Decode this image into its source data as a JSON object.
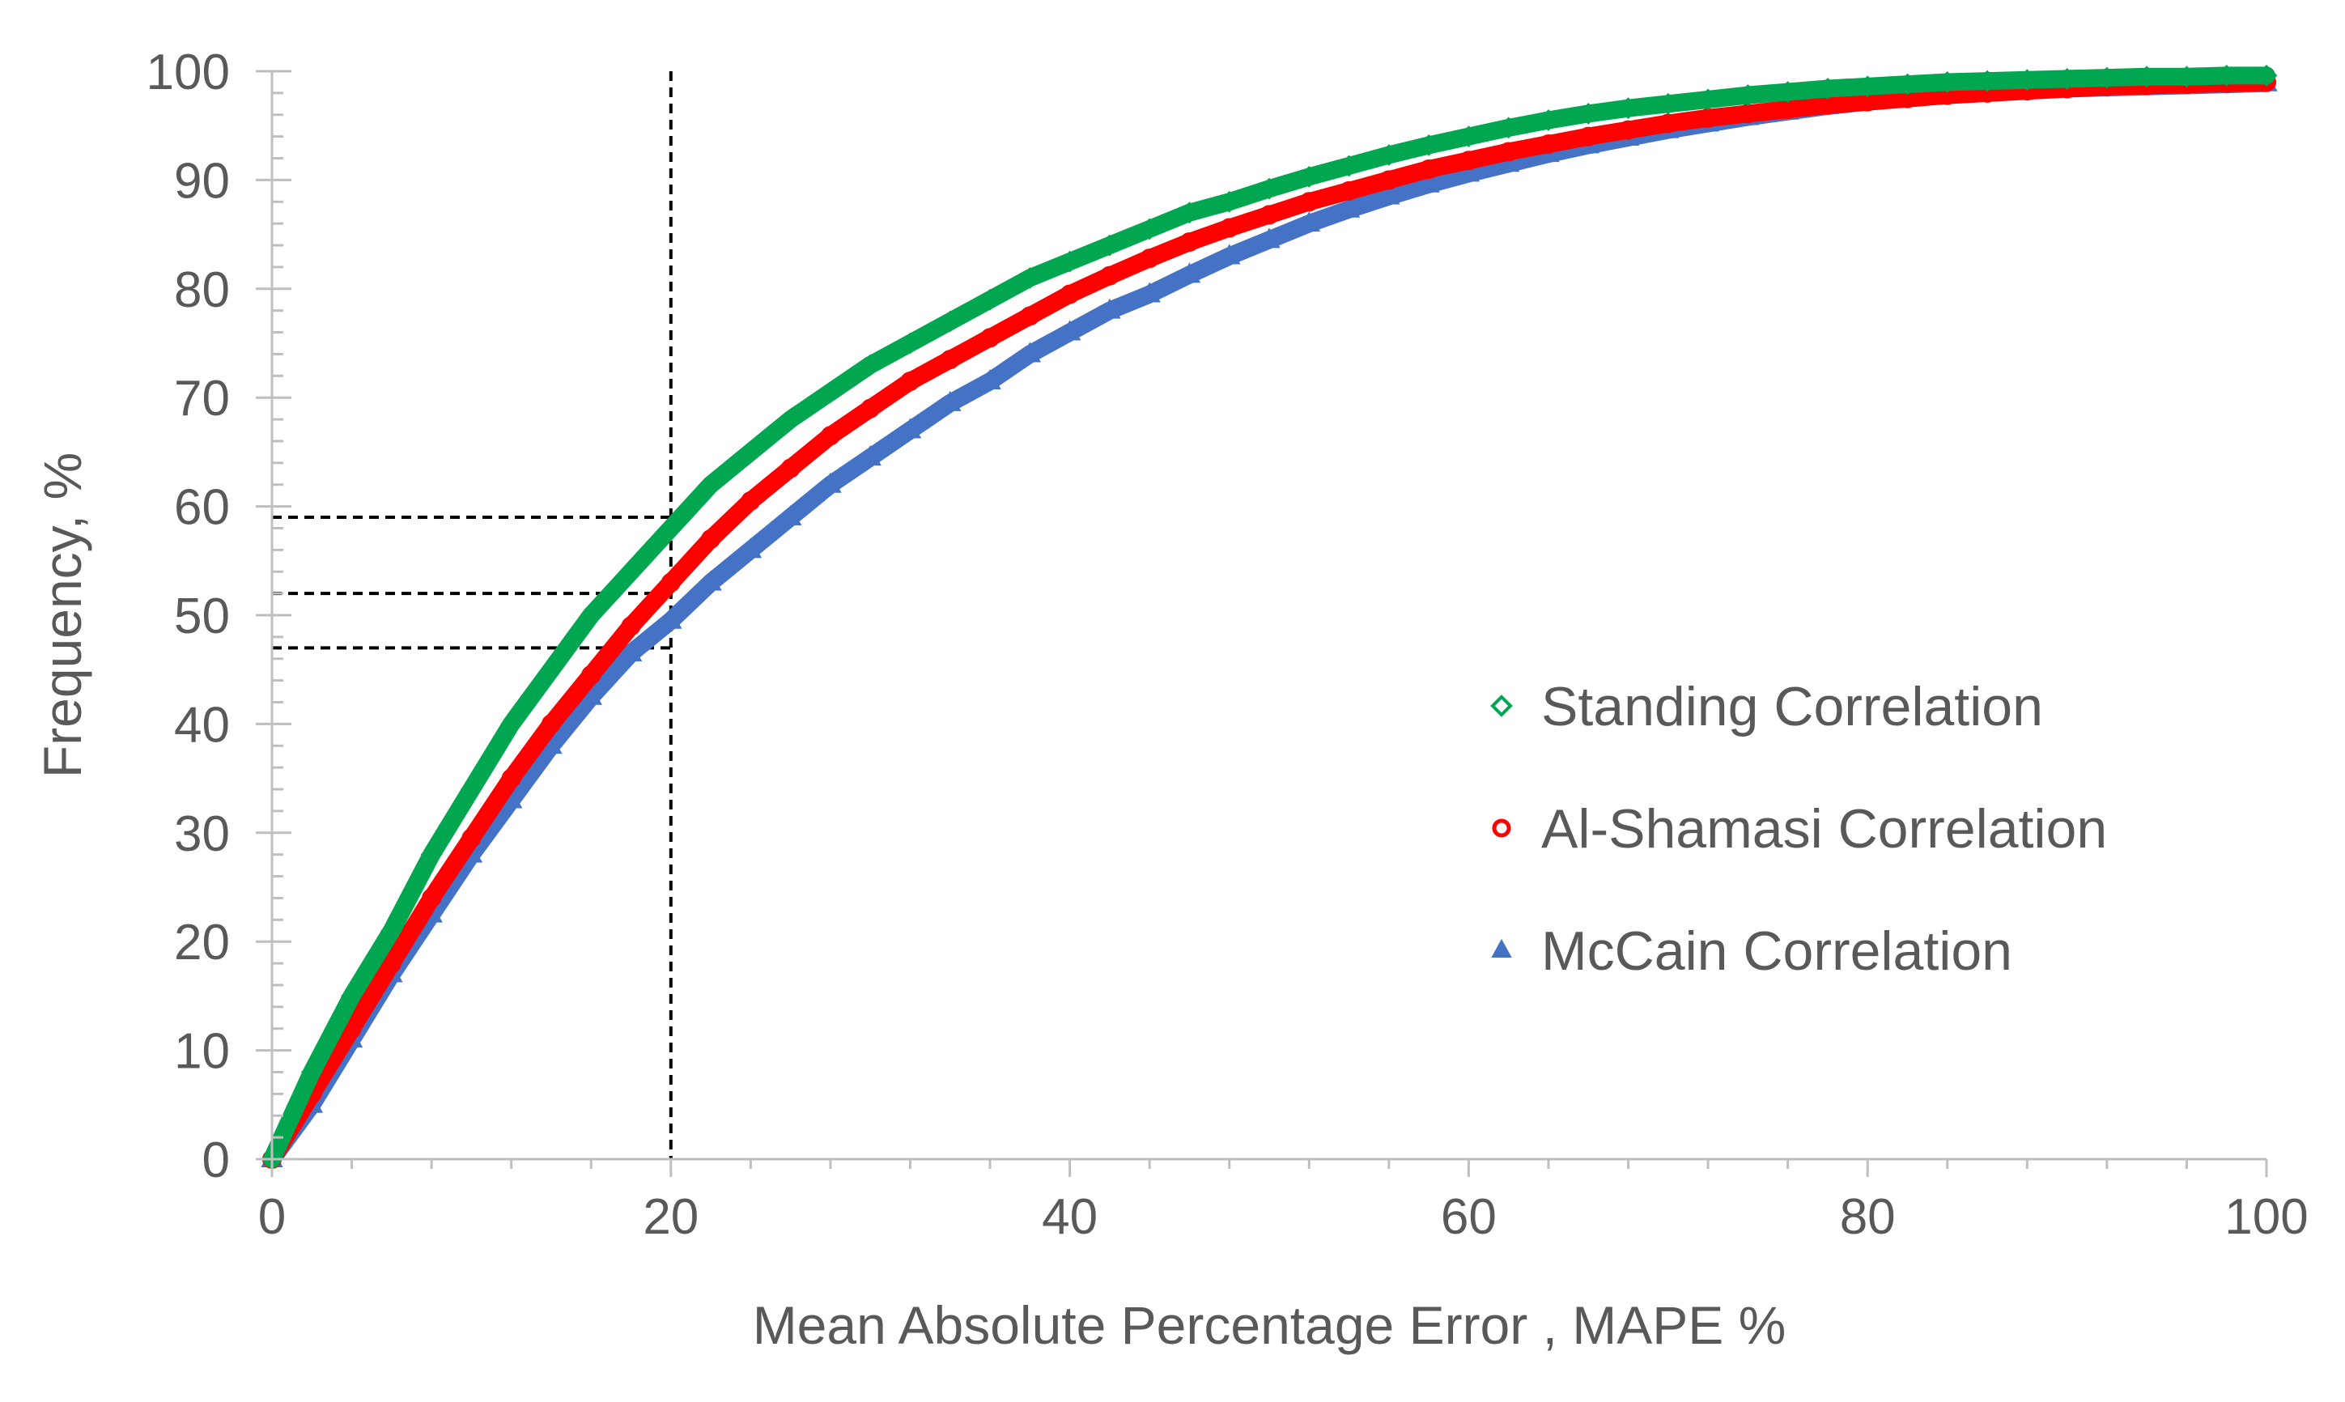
{
  "chart_data": {
    "type": "scatter",
    "title": "",
    "xlabel": "Mean Absolute Percentage Error , MAPE %",
    "ylabel": "Frequency, %",
    "xlim": [
      0,
      100
    ],
    "ylim": [
      0,
      100
    ],
    "x_ticks": [
      0,
      20,
      40,
      60,
      80,
      100
    ],
    "y_ticks": [
      0,
      10,
      20,
      30,
      40,
      50,
      60,
      70,
      80,
      90,
      100
    ],
    "x_tick_labels": [
      "0",
      "20",
      "40",
      "60",
      "80",
      "100"
    ],
    "y_tick_labels": [
      "0",
      "10",
      "20",
      "30",
      "40",
      "50",
      "60",
      "70",
      "80",
      "90",
      "100"
    ],
    "grid": false,
    "legend_position": "right",
    "reference_lines": {
      "vertical_x": 20,
      "horizontal_y": [
        59,
        52,
        47
      ],
      "style": "dashed",
      "color": "#000000"
    },
    "x": [
      0,
      2,
      4,
      6,
      8,
      10,
      12,
      14,
      16,
      18,
      20,
      22,
      24,
      26,
      28,
      30,
      32,
      34,
      36,
      38,
      40,
      42,
      44,
      46,
      48,
      50,
      52,
      54,
      56,
      58,
      60,
      62,
      64,
      66,
      68,
      70,
      72,
      74,
      76,
      78,
      80,
      82,
      84,
      86,
      88,
      90,
      92,
      94,
      96,
      98,
      100
    ],
    "series": [
      {
        "name": "Standing Correlation",
        "marker": "diamond",
        "color": "#00A650",
        "values": [
          0,
          8,
          15,
          21,
          28,
          34,
          40,
          45,
          50,
          54,
          58,
          62,
          65,
          68,
          70.5,
          73,
          75,
          77,
          79,
          81,
          82.5,
          84,
          85.5,
          87,
          88,
          89.2,
          90.3,
          91.3,
          92.3,
          93.2,
          94,
          94.8,
          95.5,
          96.1,
          96.6,
          97,
          97.4,
          97.8,
          98.1,
          98.4,
          98.6,
          98.8,
          99,
          99.1,
          99.2,
          99.3,
          99.4,
          99.5,
          99.5,
          99.6,
          99.6
        ]
      },
      {
        "name": "Al-Shamasi Correlation",
        "marker": "circle",
        "color": "#FF0000",
        "values": [
          0,
          6,
          12,
          18,
          24,
          29.5,
          35,
          40,
          44.5,
          49,
          53,
          57,
          60.5,
          63.5,
          66.5,
          69,
          71.5,
          73.5,
          75.5,
          77.5,
          79.5,
          81.2,
          82.8,
          84.3,
          85.6,
          86.8,
          88,
          89,
          90,
          91,
          91.8,
          92.6,
          93.3,
          94,
          94.6,
          95.2,
          95.7,
          96.1,
          96.5,
          96.9,
          97.2,
          97.5,
          97.8,
          98,
          98.2,
          98.4,
          98.6,
          98.7,
          98.8,
          98.9,
          99
        ]
      },
      {
        "name": "McCain Correlation",
        "marker": "triangle",
        "color": "#4472C4",
        "values": [
          0,
          5,
          11,
          17,
          22.5,
          28,
          33,
          38,
          42.5,
          46.5,
          49.5,
          53,
          56,
          59,
          62,
          64.5,
          67,
          69.5,
          71.5,
          74,
          76,
          78,
          79.5,
          81.3,
          83,
          84.5,
          86,
          87.3,
          88.5,
          89.6,
          90.6,
          91.5,
          92.4,
          93.2,
          93.9,
          94.6,
          95.2,
          95.8,
          96.3,
          96.8,
          97.2,
          97.5,
          97.8,
          98,
          98.2,
          98.4,
          98.5,
          98.6,
          98.7,
          98.8,
          98.9
        ]
      }
    ]
  }
}
